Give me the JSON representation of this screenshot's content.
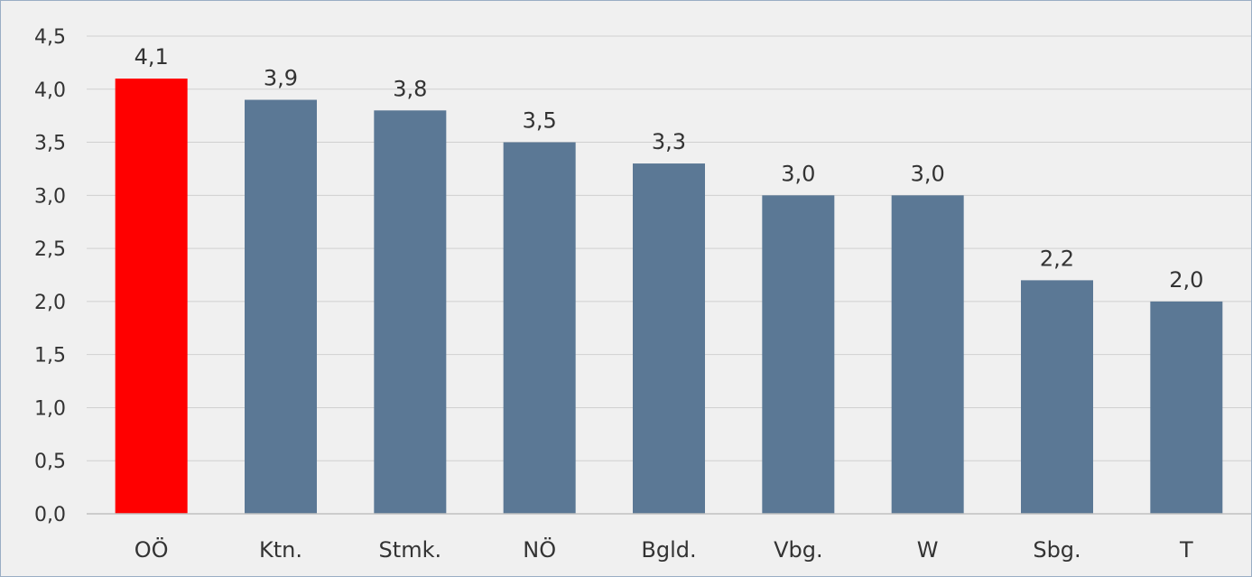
{
  "chart_data": {
    "type": "bar",
    "categories": [
      "OÖ",
      "Ktn.",
      "Stmk.",
      "NÖ",
      "Bgld.",
      "Vbg.",
      "W",
      "Sbg.",
      "T"
    ],
    "values": [
      4.1,
      3.9,
      3.8,
      3.5,
      3.3,
      3.0,
      3.0,
      2.2,
      2.0
    ],
    "value_labels": [
      "4,1",
      "3,9",
      "3,8",
      "3,5",
      "3,3",
      "3,0",
      "3,0",
      "2,2",
      "2,0"
    ],
    "yticks": [
      0,
      0.5,
      1.0,
      1.5,
      2.0,
      2.5,
      3.0,
      3.5,
      4.0,
      4.5
    ],
    "ytick_labels": [
      "0,0",
      "0,5",
      "1,0",
      "1,5",
      "2,0",
      "2,5",
      "3,0",
      "3,5",
      "4,0",
      "4,5"
    ],
    "ylim": [
      0,
      4.5
    ],
    "grid": true,
    "colors": {
      "highlight": "#ff0000",
      "bar": "#5b7895",
      "grid": "#d0d0d0",
      "axis": "#bfbfbf"
    },
    "highlight_index": 0
  }
}
